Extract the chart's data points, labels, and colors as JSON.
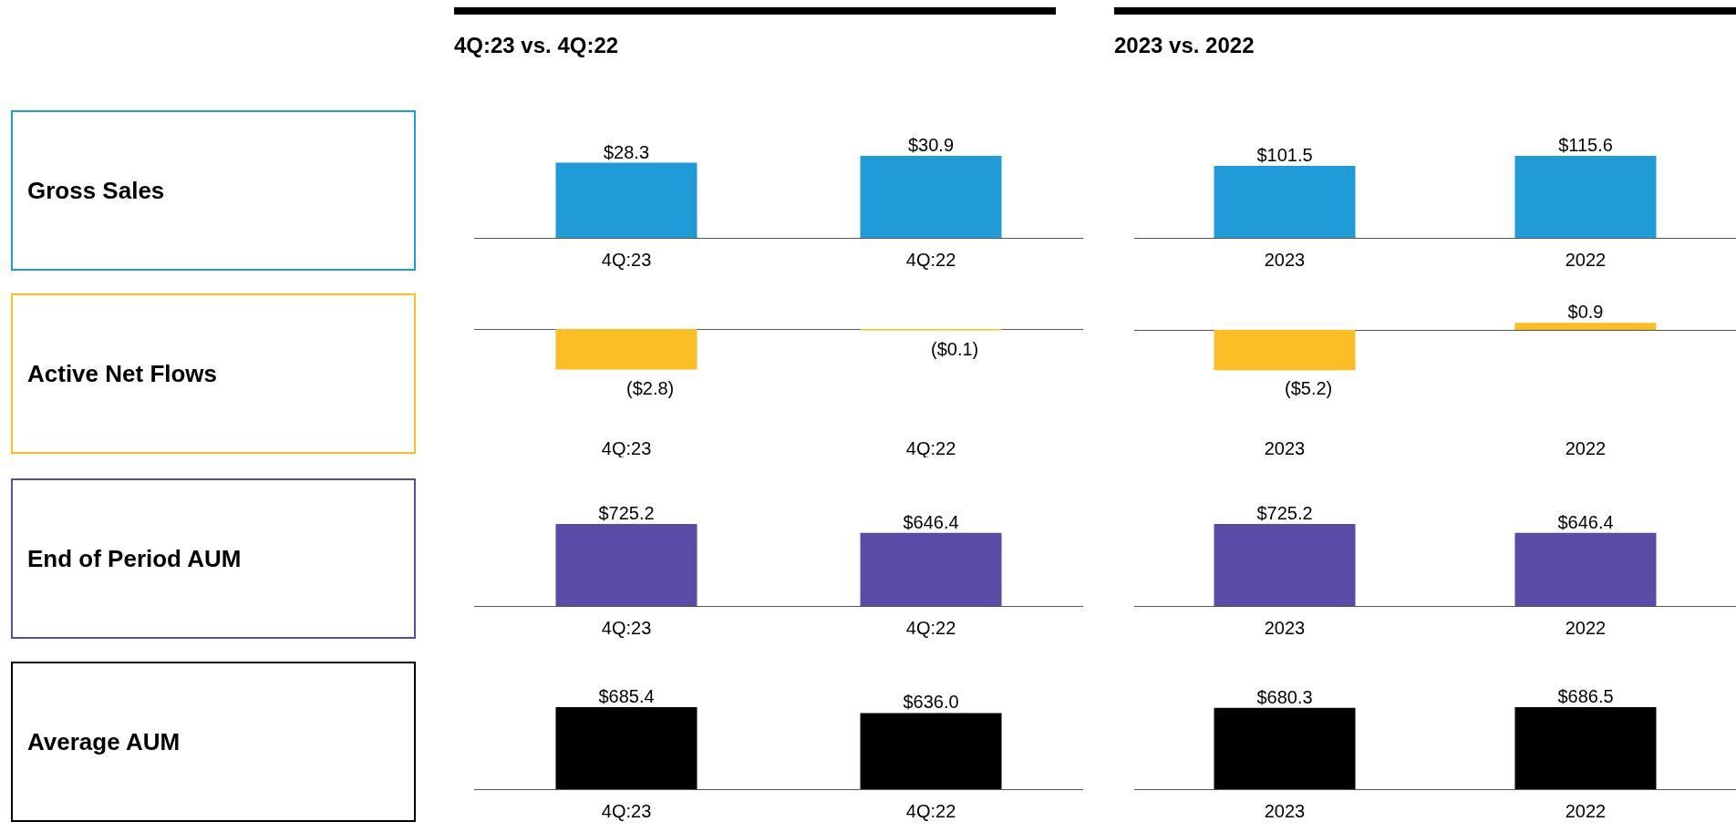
{
  "chart_data": [
    {
      "type": "bar",
      "title": "4Q:23 vs. 4Q:22",
      "ylabel": "Gross Sales",
      "categories": [
        "4Q:23",
        "4Q:22"
      ],
      "values": [
        28.3,
        30.9
      ],
      "value_labels": [
        "$28.3",
        "$30.9"
      ],
      "color": "#1f9bd7"
    },
    {
      "type": "bar",
      "title": "2023 vs. 2022",
      "categories": [
        "2023",
        "2022"
      ],
      "values": [
        101.5,
        115.6
      ],
      "value_labels": [
        "$101.5",
        "$115.6"
      ],
      "color": "#1f9bd7"
    },
    {
      "type": "bar",
      "ylabel": "Active Net Flows",
      "categories": [
        "4Q:23",
        "4Q:22"
      ],
      "values": [
        -2.8,
        -0.1
      ],
      "value_labels": [
        "($2.8)",
        "($0.1)"
      ],
      "color": "#fcbe25"
    },
    {
      "type": "bar",
      "categories": [
        "2023",
        "2022"
      ],
      "values": [
        -5.2,
        0.9
      ],
      "value_labels": [
        "($5.2)",
        "$0.9"
      ],
      "color": "#fcbe25"
    },
    {
      "type": "bar",
      "ylabel": "End of Period AUM",
      "categories": [
        "4Q:23",
        "4Q:22"
      ],
      "values": [
        725.2,
        646.4
      ],
      "value_labels": [
        "$725.2",
        "$646.4"
      ],
      "color": "#5b4aa6"
    },
    {
      "type": "bar",
      "categories": [
        "2023",
        "2022"
      ],
      "values": [
        725.2,
        646.4
      ],
      "value_labels": [
        "$725.2",
        "$646.4"
      ],
      "color": "#5b4aa6"
    },
    {
      "type": "bar",
      "ylabel": "Average AUM",
      "categories": [
        "4Q:23",
        "4Q:22"
      ],
      "values": [
        685.4,
        636.0
      ],
      "value_labels": [
        "$685.4",
        "$636.0"
      ],
      "color": "#000000"
    },
    {
      "type": "bar",
      "categories": [
        "2023",
        "2022"
      ],
      "values": [
        680.3,
        686.5
      ],
      "value_labels": [
        "$680.3",
        "$686.5"
      ],
      "color": "#000000"
    }
  ]
}
